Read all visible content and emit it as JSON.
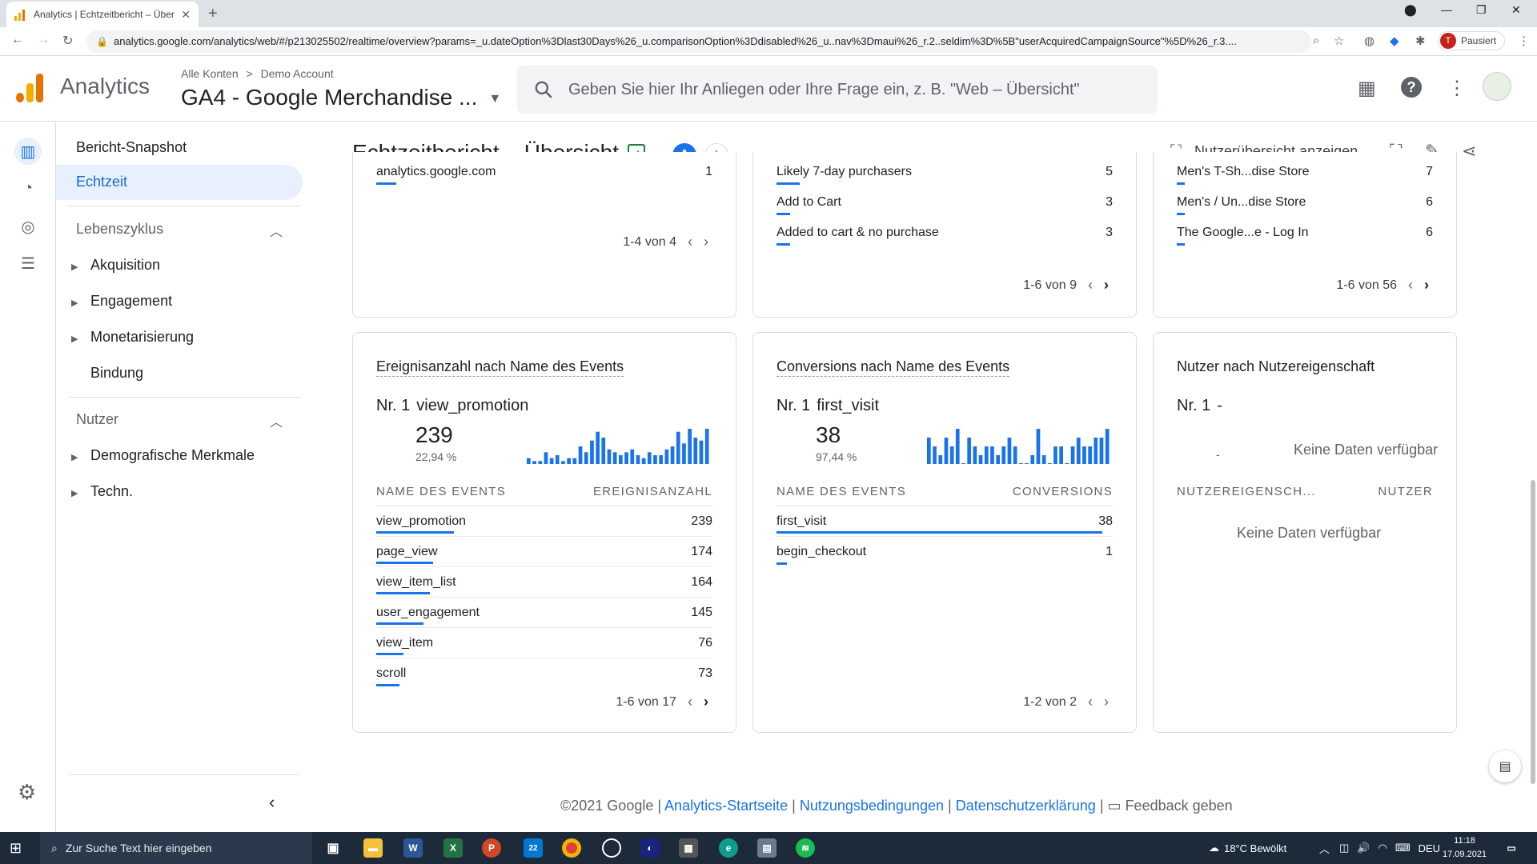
{
  "browser": {
    "tab_title": "Analytics | Echtzeitbericht – Über",
    "url": "analytics.google.com/analytics/web/#/p213025502/realtime/overview?params=_u.dateOption%3Dlast30Days%26_u.comparisonOption%3Ddisabled%26_u..nav%3Dmaui%26_r.2..seldim%3D%5B\"userAcquiredCampaignSource\"%5D%26_r.3....",
    "profile_letter": "T",
    "profile_status": "Pausiert"
  },
  "header": {
    "app_name": "Analytics",
    "breadcrumb_root": "Alle Konten",
    "breadcrumb_sep": ">",
    "breadcrumb_account": "Demo Account",
    "property": "GA4 - Google Merchandise ...",
    "search_placeholder": "Geben Sie hier Ihr Anliegen oder Ihre Frage ein, z. B. \"Web – Übersicht\""
  },
  "nav": {
    "snapshot": "Bericht-Snapshot",
    "realtime": "Echtzeit",
    "lifecycle": "Lebenszyklus",
    "acquisition": "Akquisition",
    "engagement": "Engagement",
    "monetization": "Monetarisierung",
    "retention": "Bindung",
    "user": "Nutzer",
    "demographics": "Demografische Merkmale",
    "tech": "Techn."
  },
  "page": {
    "title": "Echtzeitbericht – Übersicht",
    "comparison_badge": "A",
    "user_overview": "Nutzerübersicht anzeigen"
  },
  "top_cards": {
    "left": {
      "rows": [
        {
          "name": "analytics.google.com",
          "value": "1",
          "share": 0.06
        }
      ],
      "pager": "1-4 von 4"
    },
    "middle": {
      "rows": [
        {
          "name": "Likely 7-day purchasers",
          "value": "5",
          "share": 0.07
        },
        {
          "name": "Add to Cart",
          "value": "3",
          "share": 0.04
        },
        {
          "name": "Added to cart & no purchase",
          "value": "3",
          "share": 0.04
        }
      ],
      "pager": "1-6 von 9"
    },
    "right": {
      "rows": [
        {
          "name": "Men's T-Sh...dise Store",
          "value": "7",
          "share": 0.03
        },
        {
          "name": "Men's / Un...dise Store",
          "value": "6",
          "share": 0.03
        },
        {
          "name": "The Google...e - Log In",
          "value": "6",
          "share": 0.03
        }
      ],
      "pager": "1-6 von 56"
    }
  },
  "events_card": {
    "title": "Ereignisanzahl nach Name des Events",
    "rank": "Nr. 1",
    "top_name": "view_promotion",
    "top_value": "239",
    "top_pct": "22,94 %",
    "col_name": "NAME DES EVENTS",
    "col_value": "EREIGNISANZAHL",
    "rows": [
      {
        "name": "view_promotion",
        "value": "239",
        "share": 0.23
      },
      {
        "name": "page_view",
        "value": "174",
        "share": 0.17
      },
      {
        "name": "view_item_list",
        "value": "164",
        "share": 0.16
      },
      {
        "name": "user_engagement",
        "value": "145",
        "share": 0.14
      },
      {
        "name": "view_item",
        "value": "76",
        "share": 0.08
      },
      {
        "name": "scroll",
        "value": "73",
        "share": 0.07
      }
    ],
    "pager": "1-6 von 17",
    "sparkline": [
      2,
      1,
      1,
      4,
      2,
      3,
      1,
      2,
      2,
      6,
      4,
      8,
      11,
      9,
      5,
      4,
      3,
      4,
      5,
      3,
      2,
      4,
      3,
      3,
      5,
      6,
      11,
      7,
      12,
      9,
      8,
      12
    ]
  },
  "conversions_card": {
    "title": "Conversions nach Name des Events",
    "rank": "Nr. 1",
    "top_name": "first_visit",
    "top_value": "38",
    "top_pct": "97,44 %",
    "col_name": "NAME DES EVENTS",
    "col_value": "CONVERSIONS",
    "rows": [
      {
        "name": "first_visit",
        "value": "38",
        "share": 0.97
      },
      {
        "name": "begin_checkout",
        "value": "1",
        "share": 0.03
      }
    ],
    "pager": "1-2 von 2",
    "sparkline": [
      3,
      2,
      1,
      3,
      2,
      4,
      0,
      3,
      2,
      1,
      2,
      2,
      1,
      2,
      3,
      2,
      0,
      0,
      1,
      4,
      1,
      0,
      2,
      2,
      0,
      2,
      3,
      2,
      2,
      3,
      3,
      4
    ]
  },
  "users_card": {
    "title": "Nutzer nach Nutzereigenschaft",
    "rank": "Nr. 1",
    "top_name": "-",
    "dash": "-",
    "no_data": "Keine Daten verfügbar",
    "col_name": "NUTZEREIGENSCH...",
    "col_value": "NUTZER",
    "table_no_data": "Keine Daten verfügbar"
  },
  "footer": {
    "copyright": "©2021 Google |",
    "home": "Analytics-Startseite",
    "terms": "Nutzungsbedingungen",
    "privacy": "Datenschutzerklärung",
    "feedback": "Feedback geben",
    "sep": "|"
  },
  "taskbar": {
    "search_placeholder": "Zur Suche Text hier eingeben",
    "weather": "18°C  Bewölkt",
    "lang": "DEU",
    "time": "11:18",
    "date": "17.09.2021",
    "mail_badge": "22"
  },
  "colors": {
    "accent": "#1a73e8",
    "ga_orange": "#f9ab00",
    "ga_orange_dark": "#e37400"
  }
}
